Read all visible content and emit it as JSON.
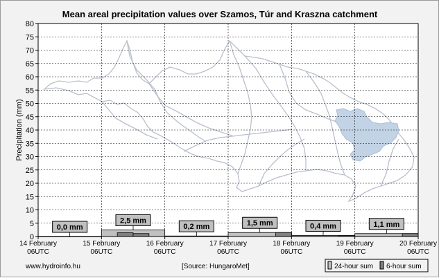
{
  "chart_data": {
    "type": "bar",
    "title": "Mean areal precipitation values over Szamos, Túr and Kraszna catchment",
    "ylabel": "Precipitation (mm)",
    "ylim": [
      0,
      80
    ],
    "yticks": [
      0,
      5,
      10,
      15,
      20,
      25,
      30,
      35,
      40,
      45,
      50,
      55,
      60,
      65,
      70,
      75,
      80
    ],
    "grid": true,
    "x_ticks": [
      {
        "date": "14 February",
        "time": "06UTC"
      },
      {
        "date": "15 February",
        "time": "06UTC"
      },
      {
        "date": "16 February",
        "time": "06UTC"
      },
      {
        "date": "17 February",
        "time": "06UTC"
      },
      {
        "date": "18 February",
        "time": "06UTC"
      },
      {
        "date": "19 February",
        "time": "06UTC"
      },
      {
        "date": "20 February",
        "time": "06UTC"
      }
    ],
    "series": [
      {
        "name": "24-hour sum",
        "color": "#c0c0c0",
        "values": [
          0.0,
          2.5,
          0.2,
          1.5,
          0.4,
          1.1
        ]
      },
      {
        "name": "6-hour sum",
        "color": "#808080",
        "values": [
          0.0,
          0.0,
          0.0,
          0.0,
          0.0,
          1.4,
          1.1,
          0.0,
          0.0,
          0.1,
          0.1,
          0.0,
          0.0,
          0.0,
          0.0,
          1.5,
          0.0,
          0.0,
          0.0,
          0.4,
          0.0,
          0.0,
          0.0,
          1.1
        ]
      }
    ],
    "data_labels": [
      "0,0 mm",
      "2,5 mm",
      "0,2 mm",
      "1,5 mm",
      "0,4 mm",
      "1,1 mm"
    ],
    "legend_position": "bottom-right"
  },
  "footer": {
    "website": "www.hydroinfo.hu",
    "source": "[Source: HungaroMet]"
  },
  "legend": {
    "items": [
      "24-hour sum",
      "6-hour sum"
    ]
  },
  "colors": {
    "background": "#f2f2f2",
    "plot_background": "#ffffff",
    "map_outline": "#b9bfcc",
    "catchment_fill": "#c3d3e6"
  }
}
